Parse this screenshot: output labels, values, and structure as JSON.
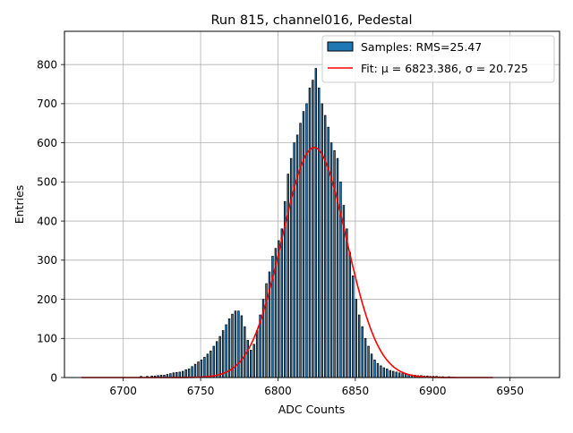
{
  "chart_data": {
    "type": "bar",
    "title": "Run 815, channel016, Pedestal",
    "xlabel": "ADC Counts",
    "ylabel": "Entries",
    "xlim": [
      6662,
      6982
    ],
    "ylim": [
      0,
      885
    ],
    "xticks": [
      6700,
      6750,
      6800,
      6850,
      6900,
      6950
    ],
    "yticks": [
      0,
      100,
      200,
      300,
      400,
      500,
      600,
      700,
      800
    ],
    "grid": true,
    "legend_position": "top-right",
    "series": [
      {
        "name": "Samples: RMS=25.47",
        "kind": "histogram",
        "color": "#1f77b4",
        "edgecolor": "#000000",
        "bin_width": 1,
        "x": [
          6711,
          6715,
          6718,
          6720,
          6722,
          6724,
          6726,
          6728,
          6730,
          6732,
          6734,
          6736,
          6738,
          6740,
          6742,
          6744,
          6746,
          6748,
          6750,
          6752,
          6754,
          6756,
          6758,
          6760,
          6762,
          6764,
          6766,
          6768,
          6770,
          6772,
          6774,
          6776,
          6778,
          6780,
          6782,
          6784,
          6786,
          6788,
          6790,
          6792,
          6794,
          6796,
          6798,
          6800,
          6802,
          6804,
          6806,
          6808,
          6810,
          6812,
          6814,
          6816,
          6818,
          6820,
          6822,
          6824,
          6826,
          6828,
          6830,
          6832,
          6834,
          6836,
          6838,
          6840,
          6842,
          6844,
          6846,
          6848,
          6850,
          6852,
          6854,
          6856,
          6858,
          6860,
          6862,
          6864,
          6866,
          6868,
          6870,
          6872,
          6874,
          6876,
          6878,
          6880,
          6882,
          6884,
          6886,
          6888,
          6890,
          6892,
          6894,
          6896,
          6898,
          6900,
          6902,
          6904,
          6906,
          6910
        ],
        "values": [
          3,
          3,
          4,
          4,
          5,
          6,
          6,
          8,
          10,
          12,
          13,
          14,
          16,
          20,
          22,
          28,
          34,
          40,
          45,
          52,
          60,
          68,
          80,
          92,
          105,
          120,
          135,
          150,
          162,
          170,
          170,
          158,
          130,
          95,
          70,
          85,
          120,
          160,
          200,
          240,
          270,
          310,
          330,
          350,
          380,
          450,
          520,
          560,
          600,
          620,
          650,
          680,
          700,
          740,
          760,
          790,
          740,
          700,
          670,
          640,
          600,
          580,
          560,
          500,
          440,
          380,
          320,
          260,
          200,
          160,
          130,
          100,
          80,
          60,
          45,
          36,
          30,
          25,
          22,
          18,
          16,
          14,
          12,
          10,
          9,
          8,
          7,
          6,
          5,
          5,
          4,
          4,
          3,
          3,
          3,
          2,
          2,
          2
        ]
      },
      {
        "name": "Fit: μ = 6823.386, σ = 20.725",
        "kind": "line",
        "color": "#ff0000",
        "mu": 6823.386,
        "sigma": 20.725,
        "amplitude": 588,
        "x_range": [
          6673,
          6939
        ]
      }
    ]
  }
}
